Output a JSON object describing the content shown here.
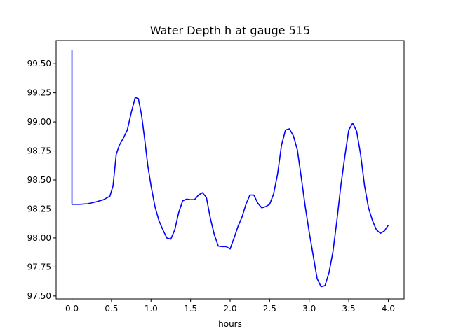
{
  "chart_data": {
    "type": "line",
    "title": "Water Depth h at gauge 515",
    "xlabel": "hours",
    "ylabel": "",
    "xlim": [
      -0.2,
      4.2
    ],
    "ylim": [
      97.475,
      99.7
    ],
    "xticks": [
      0.0,
      0.5,
      1.0,
      1.5,
      2.0,
      2.5,
      3.0,
      3.5,
      4.0
    ],
    "xtick_labels": [
      "0.0",
      "0.5",
      "1.0",
      "1.5",
      "2.0",
      "2.5",
      "3.0",
      "3.5",
      "4.0"
    ],
    "yticks": [
      97.5,
      97.75,
      98.0,
      98.25,
      98.5,
      98.75,
      99.0,
      99.25,
      99.5
    ],
    "ytick_labels": [
      "97.50",
      "97.75",
      "98.00",
      "98.25",
      "98.50",
      "98.75",
      "99.00",
      "99.25",
      "99.50"
    ],
    "grid": false,
    "series": [
      {
        "color": "#0000ff",
        "x": [
          0.0,
          0.0,
          0.001,
          0.1,
          0.2,
          0.3,
          0.4,
          0.48,
          0.52,
          0.56,
          0.6,
          0.65,
          0.7,
          0.75,
          0.8,
          0.84,
          0.88,
          0.92,
          0.96,
          1.0,
          1.05,
          1.1,
          1.15,
          1.2,
          1.25,
          1.3,
          1.35,
          1.4,
          1.45,
          1.5,
          1.55,
          1.6,
          1.65,
          1.7,
          1.75,
          1.8,
          1.85,
          1.9,
          1.95,
          2.0,
          2.05,
          2.1,
          2.15,
          2.2,
          2.25,
          2.3,
          2.35,
          2.4,
          2.45,
          2.5,
          2.55,
          2.6,
          2.65,
          2.7,
          2.75,
          2.8,
          2.85,
          2.9,
          2.95,
          3.0,
          3.05,
          3.1,
          3.15,
          3.2,
          3.25,
          3.3,
          3.35,
          3.4,
          3.45,
          3.5,
          3.55,
          3.6,
          3.65,
          3.7,
          3.75,
          3.8,
          3.85,
          3.9,
          3.95,
          4.0
        ],
        "y": [
          99.62,
          98.29,
          98.29,
          98.29,
          98.295,
          98.31,
          98.33,
          98.36,
          98.45,
          98.72,
          98.8,
          98.86,
          98.93,
          99.08,
          99.21,
          99.2,
          99.06,
          98.85,
          98.62,
          98.45,
          98.27,
          98.15,
          98.07,
          98.0,
          97.99,
          98.07,
          98.22,
          98.32,
          98.335,
          98.33,
          98.33,
          98.37,
          98.39,
          98.35,
          98.17,
          98.03,
          97.93,
          97.925,
          97.925,
          97.905,
          98.0,
          98.1,
          98.18,
          98.29,
          98.37,
          98.37,
          98.3,
          98.26,
          98.27,
          98.29,
          98.38,
          98.55,
          98.8,
          98.93,
          98.94,
          98.88,
          98.76,
          98.52,
          98.27,
          98.05,
          97.85,
          97.65,
          97.58,
          97.59,
          97.7,
          97.88,
          98.15,
          98.45,
          98.7,
          98.93,
          98.99,
          98.92,
          98.72,
          98.45,
          98.26,
          98.15,
          98.07,
          98.04,
          98.06,
          98.11
        ]
      }
    ]
  }
}
